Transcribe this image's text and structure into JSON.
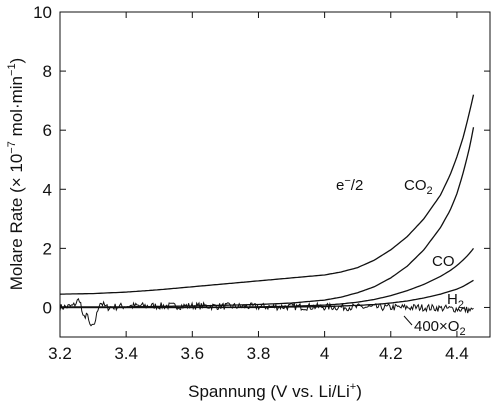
{
  "chart_data": {
    "type": "line",
    "xlabel_main": "Spannung (V vs. Li/Li",
    "xlabel_sup": "+",
    "xlabel_end": ")",
    "ylabel_main": "Molare Rate (× 10",
    "ylabel_exp": "−7",
    "ylabel_mid": " mol·min",
    "ylabel_exp2": "−1",
    "ylabel_end": ")",
    "xlim": [
      3.2,
      4.5
    ],
    "ylim": [
      -1,
      10
    ],
    "xticks": [
      "3.2",
      "3.4",
      "3.6",
      "3.8",
      "4",
      "4.2",
      "4.4"
    ],
    "yticks": [
      "0",
      "2",
      "4",
      "6",
      "8",
      "10"
    ],
    "grid": false,
    "series": [
      {
        "name": "e⁻/2",
        "x": [
          3.2,
          3.3,
          3.4,
          3.5,
          3.6,
          3.7,
          3.8,
          3.9,
          4.0,
          4.05,
          4.1,
          4.15,
          4.2,
          4.25,
          4.3,
          4.35,
          4.38,
          4.4,
          4.42,
          4.44,
          4.45
        ],
        "y": [
          0.45,
          0.47,
          0.52,
          0.6,
          0.7,
          0.8,
          0.9,
          1.0,
          1.1,
          1.2,
          1.35,
          1.6,
          1.95,
          2.4,
          3.0,
          3.8,
          4.5,
          5.1,
          5.8,
          6.7,
          7.2
        ]
      },
      {
        "name": "CO₂",
        "x": [
          3.2,
          3.4,
          3.6,
          3.8,
          3.9,
          4.0,
          4.05,
          4.1,
          4.15,
          4.2,
          4.25,
          4.3,
          4.35,
          4.38,
          4.4,
          4.42,
          4.44,
          4.45
        ],
        "y": [
          0.02,
          0.02,
          0.05,
          0.1,
          0.15,
          0.25,
          0.35,
          0.5,
          0.7,
          1.0,
          1.4,
          1.95,
          2.7,
          3.3,
          3.85,
          4.6,
          5.5,
          6.1
        ]
      },
      {
        "name": "CO",
        "x": [
          3.2,
          3.6,
          3.8,
          3.9,
          4.0,
          4.05,
          4.1,
          4.15,
          4.2,
          4.25,
          4.3,
          4.35,
          4.38,
          4.4,
          4.42,
          4.44,
          4.45
        ],
        "y": [
          0.0,
          0.0,
          0.02,
          0.04,
          0.08,
          0.12,
          0.18,
          0.27,
          0.4,
          0.57,
          0.78,
          1.05,
          1.25,
          1.42,
          1.62,
          1.85,
          2.0
        ]
      },
      {
        "name": "H₂",
        "x": [
          3.2,
          3.8,
          4.0,
          4.1,
          4.15,
          4.2,
          4.25,
          4.3,
          4.35,
          4.4,
          4.42,
          4.44,
          4.45
        ],
        "y": [
          0.0,
          0.0,
          0.03,
          0.07,
          0.1,
          0.15,
          0.22,
          0.32,
          0.45,
          0.62,
          0.72,
          0.85,
          0.92
        ]
      },
      {
        "name": "400×O₂",
        "noise_amplitude": 0.12,
        "x": [
          3.2,
          3.24,
          3.26,
          3.27,
          3.28,
          3.29,
          3.3,
          3.31,
          3.32,
          3.34,
          3.4,
          3.6,
          3.8,
          4.0,
          4.2,
          4.3,
          4.4,
          4.45
        ],
        "y": [
          0.0,
          0.05,
          0.3,
          -0.4,
          -0.2,
          -0.6,
          -0.7,
          -0.3,
          0.2,
          0.0,
          0.05,
          0.05,
          0.03,
          0.02,
          0.0,
          0.0,
          -0.05,
          -0.1
        ]
      }
    ],
    "labels": {
      "e": "e",
      "e_sup": "−",
      "e_end": "/2",
      "co2": "CO",
      "co2_sub": "2",
      "co": "CO",
      "h2": "H",
      "h2_sub": "2",
      "o2": "400×O",
      "o2_sub": "2"
    }
  }
}
